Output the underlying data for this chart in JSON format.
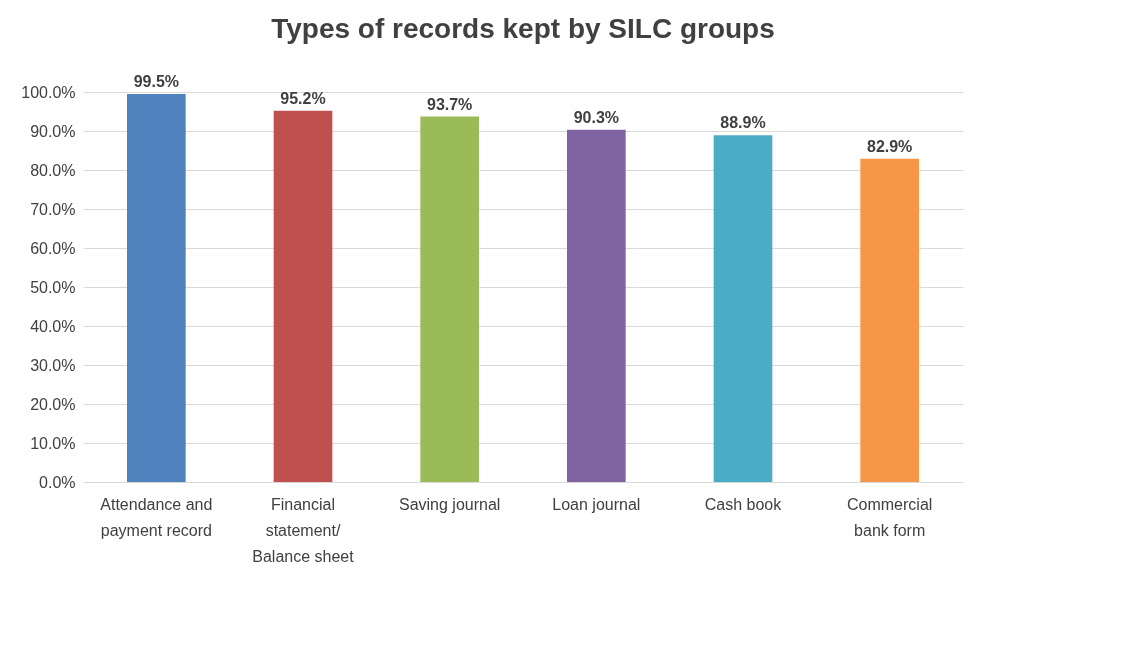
{
  "chart_data": {
    "type": "bar",
    "title": "Types of records kept by SILC groups",
    "categories": [
      "Attendance and payment record",
      "Financial statement/ Balance sheet",
      "Saving journal",
      "Loan journal",
      "Cash book",
      "Commercial bank form"
    ],
    "values": [
      99.5,
      95.2,
      93.7,
      90.3,
      88.9,
      82.9
    ],
    "colors": [
      "#4f81bd",
      "#c0504d",
      "#9bbb59",
      "#8064a2",
      "#4bacc6",
      "#f79646"
    ],
    "value_labels": [
      "99.5%",
      "95.2%",
      "93.7%",
      "90.3%",
      "88.9%",
      "82.9%"
    ],
    "ylim": [
      0,
      100
    ],
    "yticks": [
      {
        "value": 0,
        "label": "0.0%"
      },
      {
        "value": 10,
        "label": "10.0%"
      },
      {
        "value": 20,
        "label": "20.0%"
      },
      {
        "value": 30,
        "label": "30.0%"
      },
      {
        "value": 40,
        "label": "40.0%"
      },
      {
        "value": 50,
        "label": "50.0%"
      },
      {
        "value": 60,
        "label": "60.0%"
      },
      {
        "value": 70,
        "label": "70.0%"
      },
      {
        "value": 80,
        "label": "80.0%"
      },
      {
        "value": 90,
        "label": "90.0%"
      },
      {
        "value": 100,
        "label": "100.0%"
      }
    ],
    "grid": "y"
  }
}
